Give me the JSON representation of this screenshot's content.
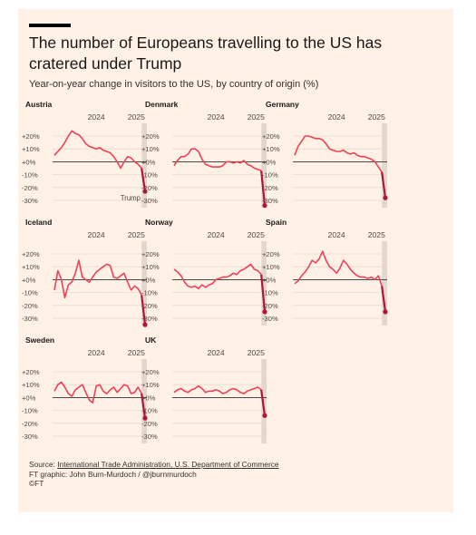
{
  "header": {
    "title": "The number of Europeans travelling to the US has cratered under Trump",
    "subtitle": "Year-on-year change in visitors to the US, by country of origin (%)"
  },
  "footer": {
    "source_label": "Source:",
    "source_link": "International Trade Administration, U.S. Department of Commerce",
    "credit": "FT graphic: John Burn-Murdoch / @jburnmurdoch",
    "copyright": "©FT"
  },
  "colors": {
    "background": "#fff1e5",
    "line": "#f0405a",
    "trump_segment": "#b3123a",
    "highlight_band": "#e2d7cc",
    "zero_line": "#33302e",
    "grid": "#e6d9ce"
  },
  "chart_data": {
    "type": "line",
    "grid": true,
    "x_ticks": [
      "2024",
      "2025"
    ],
    "y_ticks": [
      "+20%",
      "+10%",
      "+0%",
      "-10%",
      "-20%",
      "-30%"
    ],
    "ylim": [
      -35,
      25
    ],
    "annotation": "Trump",
    "panels": [
      {
        "country": "Austria",
        "x": [
          "2023-01",
          "2023-02",
          "2023-03",
          "2023-04",
          "2023-05",
          "2023-06",
          "2023-07",
          "2023-08",
          "2023-09",
          "2023-10",
          "2023-11",
          "2023-12",
          "2024-01",
          "2024-02",
          "2024-03",
          "2024-04",
          "2024-05",
          "2024-06",
          "2024-07",
          "2024-08",
          "2024-09",
          "2024-10",
          "2024-11",
          "2024-12",
          "2025-01",
          "2025-02",
          "2025-03"
        ],
        "values": [
          5,
          8,
          11,
          15,
          20,
          24,
          22,
          21,
          18,
          14,
          12,
          11,
          10,
          11,
          9,
          8,
          7,
          4,
          0,
          -5,
          0,
          4,
          3,
          0,
          -2,
          -5,
          -23
        ]
      },
      {
        "country": "Denmark",
        "x": [
          "2023-01",
          "2023-02",
          "2023-03",
          "2023-04",
          "2023-05",
          "2023-06",
          "2023-07",
          "2023-08",
          "2023-09",
          "2023-10",
          "2023-11",
          "2023-12",
          "2024-01",
          "2024-02",
          "2024-03",
          "2024-04",
          "2024-05",
          "2024-06",
          "2024-07",
          "2024-08",
          "2024-09",
          "2024-10",
          "2024-11",
          "2024-12",
          "2025-01",
          "2025-02",
          "2025-03"
        ],
        "values": [
          -3,
          1,
          4,
          4,
          6,
          10,
          10,
          8,
          2,
          -2,
          -3,
          -4,
          -4,
          -4,
          -3,
          0,
          0,
          -1,
          0,
          -1,
          1,
          -2,
          -3,
          -5,
          -6,
          -7,
          -34
        ]
      },
      {
        "country": "Germany",
        "x": [
          "2023-01",
          "2023-02",
          "2023-03",
          "2023-04",
          "2023-05",
          "2023-06",
          "2023-07",
          "2023-08",
          "2023-09",
          "2023-10",
          "2023-11",
          "2023-12",
          "2024-01",
          "2024-02",
          "2024-03",
          "2024-04",
          "2024-05",
          "2024-06",
          "2024-07",
          "2024-08",
          "2024-09",
          "2024-10",
          "2024-11",
          "2024-12",
          "2025-01",
          "2025-02",
          "2025-03"
        ],
        "values": [
          5,
          12,
          16,
          20,
          20,
          19,
          18,
          18,
          17,
          14,
          10,
          9,
          8,
          8,
          9,
          7,
          6,
          7,
          5,
          4,
          4,
          3,
          2,
          0,
          -4,
          -8,
          -28
        ]
      },
      {
        "country": "Iceland",
        "x": [
          "2023-01",
          "2023-02",
          "2023-03",
          "2023-04",
          "2023-05",
          "2023-06",
          "2023-07",
          "2023-08",
          "2023-09",
          "2023-10",
          "2023-11",
          "2023-12",
          "2024-01",
          "2024-02",
          "2024-03",
          "2024-04",
          "2024-05",
          "2024-06",
          "2024-07",
          "2024-08",
          "2024-09",
          "2024-10",
          "2024-11",
          "2024-12",
          "2025-01",
          "2025-02",
          "2025-03"
        ],
        "values": [
          -8,
          7,
          0,
          -14,
          -4,
          -2,
          5,
          15,
          2,
          0,
          -2,
          2,
          6,
          8,
          10,
          12,
          11,
          2,
          1,
          3,
          5,
          -2,
          -8,
          -5,
          -7,
          -12,
          -35
        ]
      },
      {
        "country": "Norway",
        "x": [
          "2023-01",
          "2023-02",
          "2023-03",
          "2023-04",
          "2023-05",
          "2023-06",
          "2023-07",
          "2023-08",
          "2023-09",
          "2023-10",
          "2023-11",
          "2023-12",
          "2024-01",
          "2024-02",
          "2024-03",
          "2024-04",
          "2024-05",
          "2024-06",
          "2024-07",
          "2024-08",
          "2024-09",
          "2024-10",
          "2024-11",
          "2024-12",
          "2025-01",
          "2025-02",
          "2025-03"
        ],
        "values": [
          8,
          6,
          3,
          -2,
          -5,
          -6,
          -5,
          -7,
          -4,
          -6,
          -4,
          -3,
          0,
          1,
          2,
          2,
          3,
          5,
          4,
          7,
          8,
          10,
          12,
          8,
          7,
          4,
          -25
        ]
      },
      {
        "country": "Spain",
        "x": [
          "2023-01",
          "2023-02",
          "2023-03",
          "2023-04",
          "2023-05",
          "2023-06",
          "2023-07",
          "2023-08",
          "2023-09",
          "2023-10",
          "2023-11",
          "2023-12",
          "2024-01",
          "2024-02",
          "2024-03",
          "2024-04",
          "2024-05",
          "2024-06",
          "2024-07",
          "2024-08",
          "2024-09",
          "2024-10",
          "2024-11",
          "2024-12",
          "2025-01",
          "2025-02",
          "2025-03"
        ],
        "values": [
          -3,
          -1,
          3,
          6,
          10,
          15,
          13,
          16,
          22,
          15,
          10,
          8,
          5,
          9,
          15,
          12,
          8,
          5,
          3,
          2,
          2,
          1,
          2,
          0,
          3,
          -5,
          -25
        ]
      },
      {
        "country": "Sweden",
        "x": [
          "2023-01",
          "2023-02",
          "2023-03",
          "2023-04",
          "2023-05",
          "2023-06",
          "2023-07",
          "2023-08",
          "2023-09",
          "2023-10",
          "2023-11",
          "2023-12",
          "2024-01",
          "2024-02",
          "2024-03",
          "2024-04",
          "2024-05",
          "2024-06",
          "2024-07",
          "2024-08",
          "2024-09",
          "2024-10",
          "2024-11",
          "2024-12",
          "2025-01",
          "2025-02",
          "2025-03"
        ],
        "values": [
          5,
          10,
          12,
          8,
          3,
          1,
          6,
          8,
          10,
          4,
          -2,
          -4,
          9,
          10,
          5,
          3,
          6,
          8,
          4,
          7,
          10,
          9,
          3,
          4,
          8,
          3,
          -16
        ]
      },
      {
        "country": "UK",
        "x": [
          "2023-01",
          "2023-02",
          "2023-03",
          "2023-04",
          "2023-05",
          "2023-06",
          "2023-07",
          "2023-08",
          "2023-09",
          "2023-10",
          "2023-11",
          "2023-12",
          "2024-01",
          "2024-02",
          "2024-03",
          "2024-04",
          "2024-05",
          "2024-06",
          "2024-07",
          "2024-08",
          "2024-09",
          "2024-10",
          "2024-11",
          "2024-12",
          "2025-01",
          "2025-02",
          "2025-03"
        ],
        "values": [
          4,
          6,
          7,
          5,
          4,
          6,
          7,
          9,
          7,
          4,
          5,
          5,
          6,
          5,
          3,
          4,
          6,
          7,
          6,
          4,
          3,
          5,
          6,
          7,
          8,
          6,
          -14
        ]
      }
    ]
  }
}
